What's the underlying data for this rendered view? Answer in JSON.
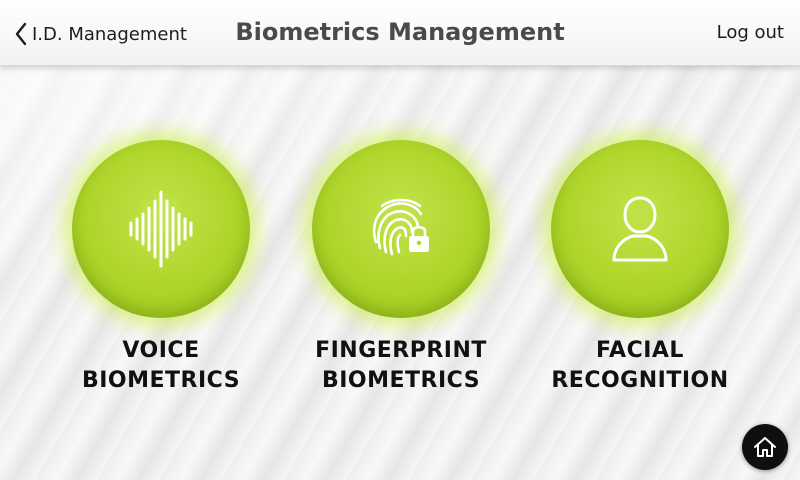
{
  "header": {
    "back_label": "I.D. Management",
    "title": "Biometrics Management",
    "logout_label": "Log out"
  },
  "tiles": [
    {
      "line1": "VOICE",
      "line2": "BIOMETRICS",
      "icon": "sound-wave-icon"
    },
    {
      "line1": "FINGERPRINT",
      "line2": "BIOMETRICS",
      "icon": "fingerprint-lock-icon"
    },
    {
      "line1": "FACIAL",
      "line2": "RECOGNITION",
      "icon": "user-silhouette-icon"
    }
  ],
  "home": {
    "icon": "home-icon"
  },
  "colors": {
    "accent": "#aed52a",
    "header_bg": "#f7f7f7",
    "title_text": "#4a4a4a",
    "home_button": "#0f0f0f"
  }
}
